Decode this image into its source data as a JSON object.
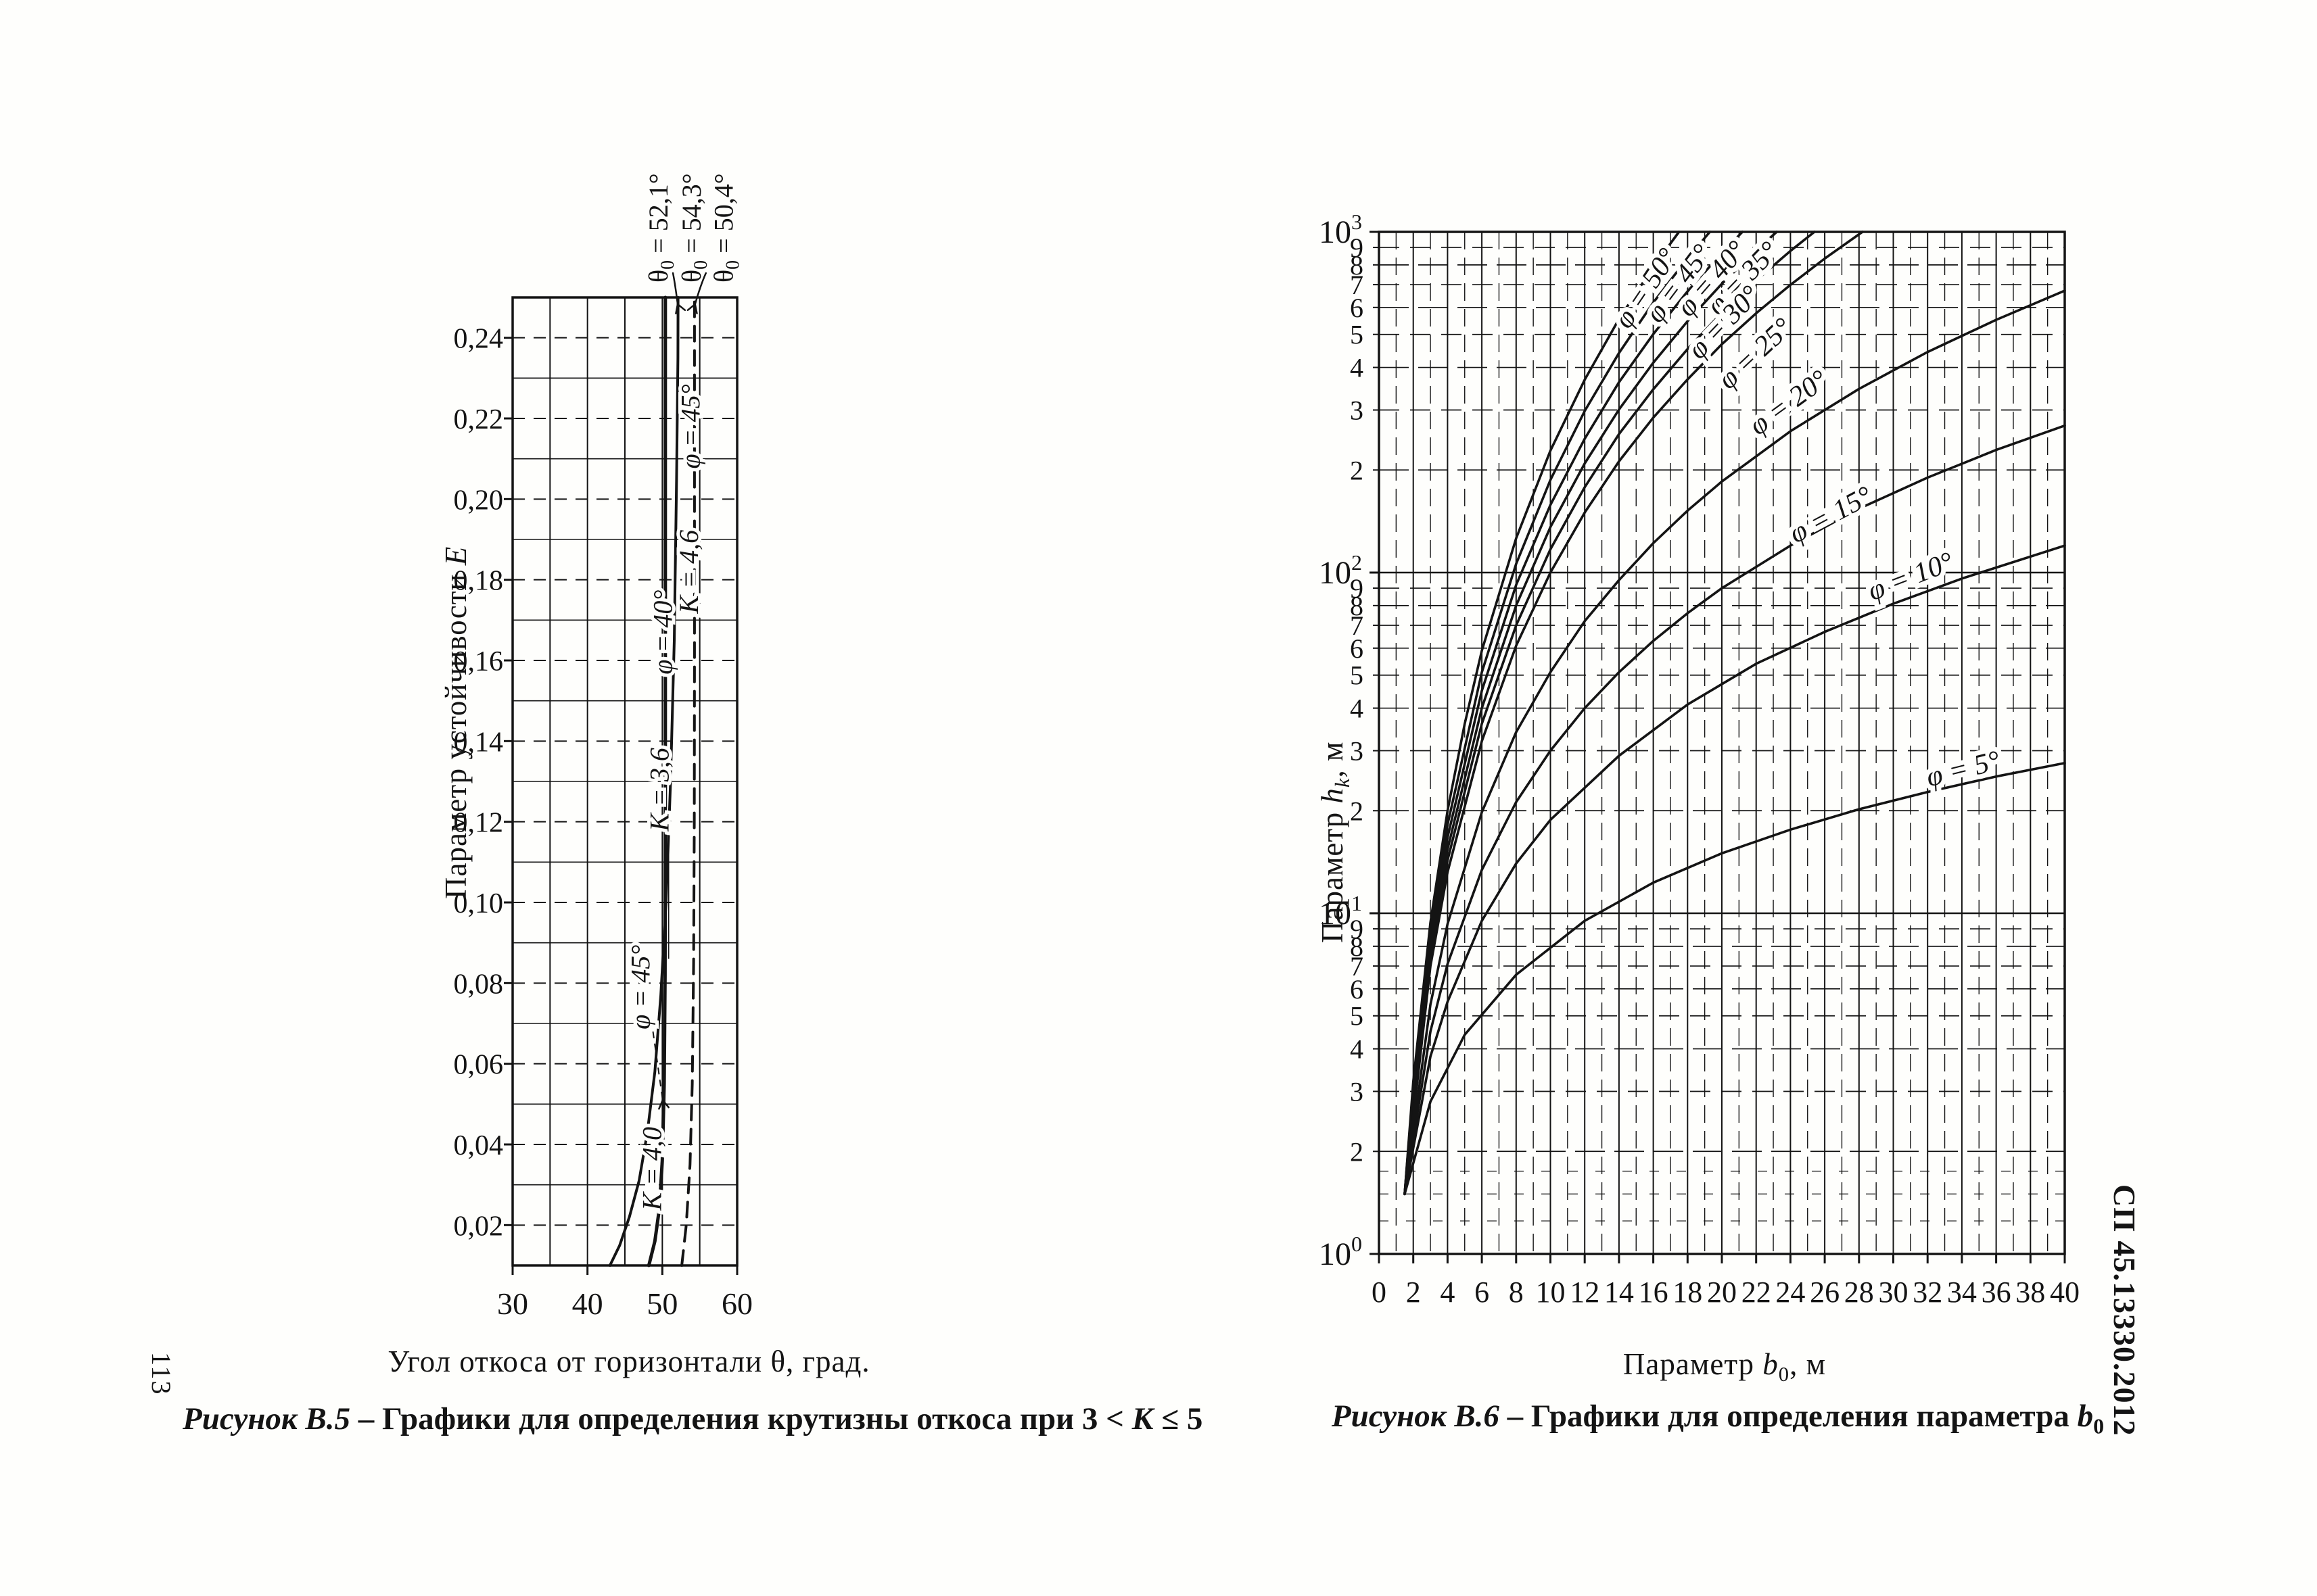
{
  "page": {
    "number": "113",
    "code": "СП 45.13330.2012",
    "ink": "#141414",
    "background": "#fefefc"
  },
  "figure_b5": {
    "caption": {
      "label": "Рисунок В.5",
      "sep": " – ",
      "body": "Графики для определения крутизны откоса при 3 < ",
      "var": "К",
      "tail": " ≤ 5"
    },
    "x_title": {
      "pre": "Угол откоса от горизонтали ",
      "var": "θ",
      "post": ", град."
    },
    "y_title": {
      "pre": "Параметр устойчивости ",
      "var": "Е"
    }
  },
  "figure_b6": {
    "caption": {
      "label": "Рисунок В.6",
      "sep": " – ",
      "body": "Графики для определения параметра ",
      "var": "b",
      "sub": "0"
    },
    "x_title": {
      "pre": "Параметр ",
      "var": "b",
      "sub": "0",
      "post": ", м"
    },
    "y_title": {
      "pre": "Параметр ",
      "var": "h",
      "sub": "k",
      "post": ", м"
    }
  },
  "chart_data": [
    {
      "type": "line",
      "title": "Рисунок В.5 – Графики для определения крутизны откоса при 3 < К ≤ 5",
      "xlabel": "Угол откоса от горизонтали θ, град.",
      "ylabel": "Параметр устойчивости Е",
      "xlim": [
        30,
        60
      ],
      "ylim": [
        0.01,
        0.25
      ],
      "x_ticks": [
        30,
        40,
        50,
        60
      ],
      "x_tick_labels": [
        "30",
        "40",
        "50",
        "60"
      ],
      "x_grid_step": 5,
      "y_grid_step": 0.01,
      "y_ticks": [
        0.02,
        0.04,
        0.06,
        0.08,
        0.1,
        0.12,
        0.14,
        0.16,
        0.18,
        0.2,
        0.22,
        0.24
      ],
      "y_tick_labels": [
        "0,02",
        "0,04",
        "0,06",
        "0,08",
        "0,10",
        "0,12",
        "0,14",
        "0,16",
        "0,18",
        "0,20",
        "0,22",
        "0,24"
      ],
      "grid": true,
      "series": [
        {
          "name": "K = 3,6",
          "phi": "φ = 40°",
          "style": "solid",
          "width": 4,
          "points": [
            [
              43.0,
              0.01
            ],
            [
              44.3,
              0.015
            ],
            [
              45.6,
              0.022
            ],
            [
              46.9,
              0.031
            ],
            [
              48.0,
              0.043
            ],
            [
              49.0,
              0.058
            ],
            [
              49.8,
              0.077
            ],
            [
              50.5,
              0.1
            ],
            [
              51.1,
              0.13
            ],
            [
              51.6,
              0.165
            ],
            [
              51.9,
              0.205
            ],
            [
              52.08,
              0.235
            ],
            [
              52.1,
              0.25
            ]
          ]
        },
        {
          "name": "K = 4,0",
          "phi": "φ = 45°",
          "style": "solid",
          "width": 5,
          "points": [
            [
              48.2,
              0.01
            ],
            [
              49.0,
              0.016
            ],
            [
              49.6,
              0.024
            ],
            [
              50.0,
              0.036
            ],
            [
              50.25,
              0.055
            ],
            [
              50.37,
              0.082
            ],
            [
              50.4,
              0.12
            ],
            [
              50.4,
              0.25
            ]
          ]
        },
        {
          "name": "K = 4,6",
          "phi": "φ = 45°",
          "style": "dashed",
          "width": 4,
          "points": [
            [
              52.6,
              0.01
            ],
            [
              53.2,
              0.02
            ],
            [
              53.7,
              0.035
            ],
            [
              54.0,
              0.055
            ],
            [
              54.18,
              0.085
            ],
            [
              54.27,
              0.12
            ],
            [
              54.3,
              0.16
            ],
            [
              54.3,
              0.25
            ]
          ]
        }
      ],
      "curve_labels": [
        {
          "text": "φ = 45°",
          "x": 55.0,
          "y": 0.218
        },
        {
          "text": "K = 4,6",
          "x": 54.75,
          "y": 0.182
        },
        {
          "text": "φ = 40°",
          "x": 51.3,
          "y": 0.167
        },
        {
          "text": "K = 3,6",
          "x": 50.85,
          "y": 0.128
        },
        {
          "text": "φ = 45°",
          "x": 48.3,
          "y": 0.079
        },
        {
          "text": "K = 4,0",
          "x": 49.85,
          "y": 0.034
        }
      ],
      "asymptote_labels": [
        {
          "sym": "θ",
          "sub": "0",
          "text": " = 52,1°",
          "label_x": 50.7,
          "leader_to": 52.05
        },
        {
          "sym": "θ",
          "sub": "0",
          "text": " = 54,3°",
          "label_x": 55.1,
          "leader_to": 54.38
        },
        {
          "sym": "θ",
          "sub": "0",
          "text": " = 50,4°",
          "label_x": 59.4,
          "leader_to": null
        }
      ]
    },
    {
      "type": "line",
      "title": "Рисунок В.6 – Графики для определения параметра b0",
      "xlabel": "Параметр b0, м",
      "ylabel": "Параметр hk, м",
      "xlim": [
        0,
        40
      ],
      "yscale": "log",
      "ylim": [
        1,
        1000
      ],
      "x_ticks": [
        0,
        2,
        4,
        6,
        8,
        10,
        12,
        14,
        16,
        18,
        20,
        22,
        24,
        26,
        28,
        30,
        32,
        34,
        36,
        38,
        40
      ],
      "x_tick_labels": [
        "0",
        "2",
        "4",
        "6",
        "8",
        "10",
        "12",
        "14",
        "16",
        "18",
        "20",
        "22",
        "24",
        "26",
        "28",
        "30",
        "32",
        "34",
        "36",
        "38",
        "40"
      ],
      "x_grid_step": 1,
      "y_decades": [
        1,
        10,
        100,
        1000
      ],
      "y_decade_labels": [
        [
          "10",
          "0"
        ],
        [
          "10",
          "1"
        ],
        [
          "10",
          "2"
        ],
        [
          "10",
          "3"
        ]
      ],
      "y_subticks": [
        2,
        3,
        4,
        5,
        6,
        7,
        8,
        9
      ],
      "y_subtick_labels": [
        "2",
        "3",
        "4",
        "5",
        "6",
        "7",
        "8",
        "9"
      ],
      "grid": true,
      "series": [
        {
          "name": "φ = 50°",
          "label_x": 16.0,
          "label_v": 660,
          "angle": -56,
          "points": [
            [
              1.5,
              1.5
            ],
            [
              2,
              3.2
            ],
            [
              3,
              9.4
            ],
            [
              4,
              20
            ],
            [
              5,
              36
            ],
            [
              6,
              59
            ],
            [
              8,
              126
            ],
            [
              10,
              228
            ],
            [
              12,
              368
            ],
            [
              14,
              555
            ],
            [
              16,
              789
            ],
            [
              17.5,
              1000
            ]
          ]
        },
        {
          "name": "φ = 45°",
          "label_x": 17.9,
          "label_v": 680,
          "angle": -53,
          "points": [
            [
              1.5,
              1.5
            ],
            [
              2,
              3.1
            ],
            [
              3,
              8.8
            ],
            [
              4,
              18.2
            ],
            [
              6,
              51
            ],
            [
              8,
              106
            ],
            [
              10,
              187
            ],
            [
              12,
              298
            ],
            [
              14,
              441
            ],
            [
              16,
              620
            ],
            [
              18,
              837
            ],
            [
              19.3,
              1000
            ]
          ]
        },
        {
          "name": "φ = 40°",
          "label_x": 19.8,
          "label_v": 700,
          "angle": -49,
          "points": [
            [
              1.5,
              1.5
            ],
            [
              2,
              3.0
            ],
            [
              3,
              8.2
            ],
            [
              4,
              16.7
            ],
            [
              6,
              45
            ],
            [
              8,
              92
            ],
            [
              10,
              158
            ],
            [
              12,
              247
            ],
            [
              14,
              362
            ],
            [
              16,
              501
            ],
            [
              18,
              669
            ],
            [
              20,
              867
            ],
            [
              21.2,
              1000
            ]
          ]
        },
        {
          "name": "φ = 35°",
          "label_x": 21.6,
          "label_v": 700,
          "angle": -46,
          "points": [
            [
              1.5,
              1.5
            ],
            [
              3,
              7.8
            ],
            [
              4,
              15.4
            ],
            [
              6,
              40
            ],
            [
              8,
              80
            ],
            [
              10,
              136
            ],
            [
              12,
              209
            ],
            [
              14,
              301
            ],
            [
              16,
              413
            ],
            [
              18,
              547
            ],
            [
              20,
              704
            ],
            [
              22,
              882
            ],
            [
              23.2,
              1000
            ]
          ]
        },
        {
          "name": "φ = 30°",
          "label_x": 20.5,
          "label_v": 520,
          "angle": -46,
          "points": [
            [
              1.5,
              1.5
            ],
            [
              3,
              7.4
            ],
            [
              4,
              14.3
            ],
            [
              6,
              36
            ],
            [
              8,
              70
            ],
            [
              10,
              117
            ],
            [
              12,
              178
            ],
            [
              14,
              255
            ],
            [
              16,
              345
            ],
            [
              18,
              453
            ],
            [
              20,
              579
            ],
            [
              22,
              720
            ],
            [
              24,
              879
            ],
            [
              25.4,
              1000
            ]
          ]
        },
        {
          "name": "φ = 25°",
          "label_x": 22.3,
          "label_v": 420,
          "angle": -43,
          "points": [
            [
              1.5,
              1.5
            ],
            [
              3,
              7.0
            ],
            [
              4,
              13.2
            ],
            [
              6,
              32
            ],
            [
              8,
              61
            ],
            [
              10,
              100
            ],
            [
              12,
              150
            ],
            [
              14,
              212
            ],
            [
              16,
              285
            ],
            [
              18,
              369
            ],
            [
              20,
              468
            ],
            [
              22,
              577
            ],
            [
              24,
              699
            ],
            [
              26,
              835
            ],
            [
              28.2,
              1000
            ]
          ]
        },
        {
          "name": "φ = 20°",
          "label_x": 24.2,
          "label_v": 300,
          "angle": -36,
          "points": [
            [
              1.5,
              1.5
            ],
            [
              3,
              5.4
            ],
            [
              4,
              9.3
            ],
            [
              6,
              19.8
            ],
            [
              8,
              34
            ],
            [
              10,
              51
            ],
            [
              12,
              72
            ],
            [
              14,
              95
            ],
            [
              16,
              122
            ],
            [
              18,
              152
            ],
            [
              20,
              185
            ],
            [
              24,
              260
            ],
            [
              28,
              346
            ],
            [
              32,
              444
            ],
            [
              36,
              552
            ],
            [
              40,
              672
            ]
          ]
        },
        {
          "name": "φ = 15°",
          "label_x": 26.6,
          "label_v": 140,
          "angle": -28,
          "points": [
            [
              1.5,
              1.5
            ],
            [
              3,
              4.5
            ],
            [
              4,
              7.1
            ],
            [
              6,
              13.4
            ],
            [
              8,
              21.2
            ],
            [
              10,
              30
            ],
            [
              12,
              40
            ],
            [
              14,
              51
            ],
            [
              16,
              63
            ],
            [
              18,
              76
            ],
            [
              20,
              90
            ],
            [
              24,
              120
            ],
            [
              28,
              154
            ],
            [
              32,
              190
            ],
            [
              36,
              229
            ],
            [
              40,
              270
            ]
          ]
        },
        {
          "name": "φ = 10°",
          "label_x": 31.2,
          "label_v": 92,
          "angle": -21,
          "points": [
            [
              1.5,
              1.5
            ],
            [
              3,
              3.8
            ],
            [
              4,
              5.5
            ],
            [
              6,
              9.5
            ],
            [
              8,
              14
            ],
            [
              10,
              18.8
            ],
            [
              14,
              29
            ],
            [
              18,
              41
            ],
            [
              22,
              54
            ],
            [
              26,
              67
            ],
            [
              30,
              81
            ],
            [
              34,
              96
            ],
            [
              40,
              120
            ]
          ]
        },
        {
          "name": "φ = 5°",
          "label_x": 34.2,
          "label_v": 25,
          "angle": -14,
          "points": [
            [
              1.5,
              1.5
            ],
            [
              3,
              2.8
            ],
            [
              5,
              4.4
            ],
            [
              8,
              6.6
            ],
            [
              12,
              9.5
            ],
            [
              16,
              12.3
            ],
            [
              20,
              15
            ],
            [
              24,
              17.6
            ],
            [
              28,
              20.2
            ],
            [
              32,
              22.7
            ],
            [
              36,
              25.2
            ],
            [
              40,
              27.6
            ]
          ]
        }
      ]
    }
  ]
}
